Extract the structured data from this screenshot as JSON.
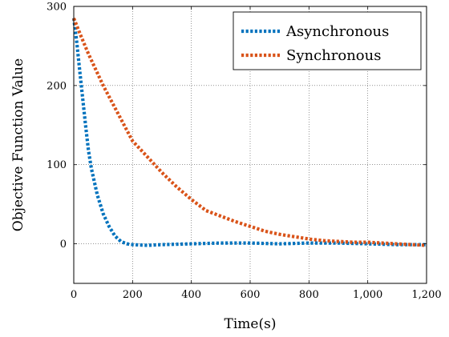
{
  "chart_data": {
    "type": "line",
    "xlabel": "Time(s)",
    "ylabel": "Objective Function Value",
    "xlim": [
      0,
      1200
    ],
    "ylim": [
      -50,
      300
    ],
    "x_ticks": [
      0,
      200,
      400,
      600,
      800,
      1000,
      1200
    ],
    "x_tick_labels": [
      "0",
      "200",
      "400",
      "600",
      "800",
      "1,000",
      "1,200"
    ],
    "y_ticks": [
      0,
      100,
      200,
      300
    ],
    "y_tick_labels": [
      "0",
      "100",
      "200",
      "300"
    ],
    "grid": true,
    "legend_position": "top-right",
    "series": [
      {
        "name": "Asynchronous",
        "color": "#0072BD",
        "style": "dotted",
        "x": [
          0,
          10,
          20,
          30,
          40,
          50,
          60,
          80,
          100,
          120,
          140,
          160,
          180,
          200,
          250,
          300,
          400,
          500,
          600,
          700,
          800,
          900,
          1000,
          1100,
          1200
        ],
        "y": [
          285,
          255,
          220,
          185,
          150,
          118,
          95,
          62,
          38,
          22,
          10,
          3,
          0,
          -1,
          -2,
          -1,
          0,
          1,
          1,
          0,
          1,
          1,
          0,
          -1,
          -1
        ]
      },
      {
        "name": "Synchronous",
        "color": "#D95319",
        "style": "dotted",
        "x": [
          0,
          25,
          50,
          100,
          150,
          200,
          250,
          300,
          350,
          400,
          450,
          500,
          550,
          600,
          650,
          700,
          750,
          800,
          850,
          900,
          950,
          1000,
          1050,
          1100,
          1150,
          1200
        ],
        "y": [
          285,
          262,
          240,
          200,
          165,
          130,
          110,
          90,
          72,
          56,
          42,
          35,
          28,
          22,
          16,
          12,
          9,
          6,
          4,
          3,
          2,
          2,
          1,
          0,
          -1,
          -2
        ]
      }
    ]
  }
}
